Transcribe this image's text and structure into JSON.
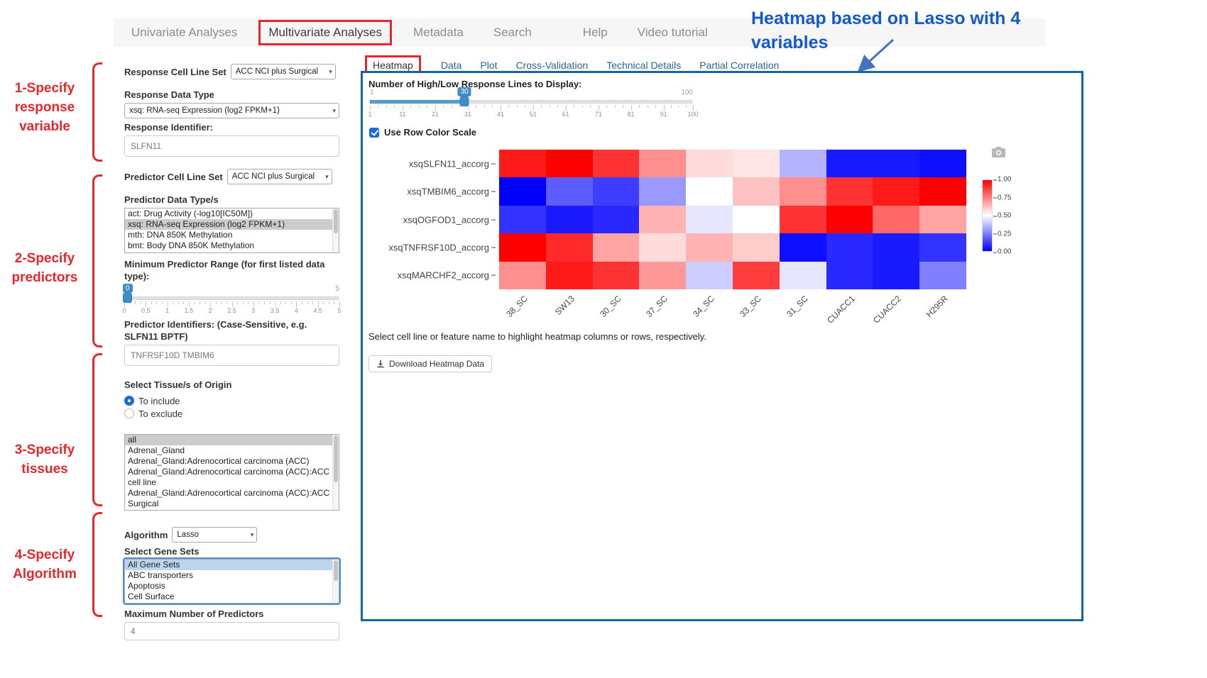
{
  "accent": {
    "annotation_red": "#e8262b",
    "annotation_blue": "#1458cd",
    "panel_border_blue": "#1565ad",
    "tab_link_blue": "#2a6496",
    "slider_blue": "#428bca",
    "heatmap_high": "#ff0000",
    "heatmap_mid": "#ffffff",
    "heatmap_low": "#0000ff"
  },
  "nav": {
    "items": [
      {
        "label": "Univariate Analyses",
        "active": false
      },
      {
        "label": "Multivariate Analyses",
        "active": true
      },
      {
        "label": "Metadata",
        "active": false
      },
      {
        "label": "Search",
        "active": false
      },
      {
        "label": "Help",
        "active": false
      },
      {
        "label": "Video tutorial",
        "active": false
      }
    ]
  },
  "annotations": {
    "step1": "1-Specify response variable",
    "step2": "2-Specify predictors",
    "step3": "3-Specify tissues",
    "step4": "4-Specify Algorithm",
    "heatmap_note": "Heatmap based on Lasso with 4 variables"
  },
  "sidebar": {
    "response_cell_line_set": {
      "label": "Response Cell Line Set",
      "value": "ACC NCI plus Surgical"
    },
    "response_data_type": {
      "label": "Response Data Type",
      "value": "xsq: RNA-seq Expression (log2 FPKM+1)"
    },
    "response_identifier": {
      "label": "Response Identifier:",
      "value": "SLFN11"
    },
    "predictor_cell_line_set": {
      "label": "Predictor Cell Line Set",
      "value": "ACC NCI plus Surgical"
    },
    "predictor_data_types": {
      "label": "Predictor Data Type/s",
      "options": [
        "act: Drug Activity (-log10[IC50M])",
        "xsq: RNA-seq Expression (log2 FPKM+1)",
        "mth: DNA 850K Methylation",
        "bmt: Body DNA 850K Methylation"
      ],
      "selected": "xsq: RNA-seq Expression (log2 FPKM+1)"
    },
    "min_predictor_range": {
      "label": "Minimum Predictor Range (for first listed data type):",
      "value": 0,
      "min": 0,
      "max": 5,
      "min_label": "0",
      "max_label": "5",
      "ticks": [
        "0",
        "0.5",
        "1",
        "1.5",
        "2",
        "2.5",
        "3",
        "3.5",
        "4",
        "4.5",
        "5"
      ]
    },
    "predictor_identifiers": {
      "label": "Predictor Identifiers: (Case-Sensitive, e.g. SLFN11 BPTF)",
      "value": "TNFRSF10D TMBIM6"
    },
    "tissue_origin": {
      "label": "Select Tissue/s of Origin",
      "radios": [
        {
          "label": "To include",
          "checked": true
        },
        {
          "label": "To exclude",
          "checked": false
        }
      ],
      "options": [
        "all",
        "Adrenal_Gland",
        "Adrenal_Gland:Adrenocortical carcinoma (ACC)",
        "Adrenal_Gland:Adrenocortical carcinoma (ACC):ACC cell line",
        "Adrenal_Gland:Adrenocortical carcinoma (ACC):ACC Surgical"
      ],
      "selected": "all"
    },
    "algorithm": {
      "label": "Algorithm",
      "value": "Lasso"
    },
    "gene_sets": {
      "label": "Select Gene Sets",
      "options": [
        "All Gene Sets",
        "ABC transporters",
        "Apoptosis",
        "Cell Surface"
      ],
      "selected": "All Gene Sets"
    },
    "max_predictors": {
      "label": "Maximum Number of Predictors",
      "value": "4"
    }
  },
  "main": {
    "tabs": [
      {
        "label": "Heatmap",
        "active": true
      },
      {
        "label": "Data",
        "active": false
      },
      {
        "label": "Plot",
        "active": false
      },
      {
        "label": "Cross-Validation",
        "active": false
      },
      {
        "label": "Technical Details",
        "active": false
      },
      {
        "label": "Partial Correlation",
        "active": false
      }
    ],
    "lines_slider": {
      "label": "Number of High/Low Response Lines to Display:",
      "value": 30,
      "min": 1,
      "max": 100,
      "min_label": "1",
      "max_label": "100",
      "ticks": [
        "1",
        "11",
        "21",
        "31",
        "41",
        "51",
        "61",
        "71",
        "81",
        "91",
        "100"
      ]
    },
    "row_color_scale": {
      "label": "Use Row Color Scale",
      "checked": true
    },
    "note": "Select cell line or feature name to highlight heatmap columns or rows, respectively.",
    "download_button": "Download Heatmap Data"
  },
  "chart_data": {
    "type": "heatmap",
    "rows": [
      "xsqSLFN11_accorg",
      "xsqTMBIM6_accorg",
      "xsqOGFOD1_accorg",
      "xsqTNFRSF10D_accorg",
      "xsqMARCHF2_accorg"
    ],
    "columns": [
      "38_SC",
      "SW13",
      "30_SC",
      "37_SC",
      "34_SC",
      "33_SC",
      "31_SC",
      "CUACC1",
      "CUACC2",
      "H295R"
    ],
    "values": [
      [
        0.95,
        1.0,
        0.9,
        0.72,
        0.57,
        0.55,
        0.35,
        0.05,
        0.05,
        0.03
      ],
      [
        0.0,
        0.18,
        0.12,
        0.3,
        0.5,
        0.62,
        0.72,
        0.9,
        0.95,
        1.0
      ],
      [
        0.1,
        0.05,
        0.08,
        0.65,
        0.45,
        0.5,
        0.9,
        1.0,
        0.8,
        0.68
      ],
      [
        1.0,
        0.92,
        0.68,
        0.57,
        0.65,
        0.6,
        0.03,
        0.08,
        0.05,
        0.1
      ],
      [
        0.72,
        0.95,
        0.9,
        0.7,
        0.4,
        0.88,
        0.45,
        0.08,
        0.05,
        0.25
      ]
    ],
    "colorscale": {
      "low_color": "#0000ff",
      "mid_color": "#ffffff",
      "high_color": "#ff0000",
      "range": [
        0,
        1
      ],
      "ticks": [
        "1.00",
        "0.75",
        "0.50",
        "0.25",
        "0.00"
      ]
    },
    "legend_position": "right"
  }
}
